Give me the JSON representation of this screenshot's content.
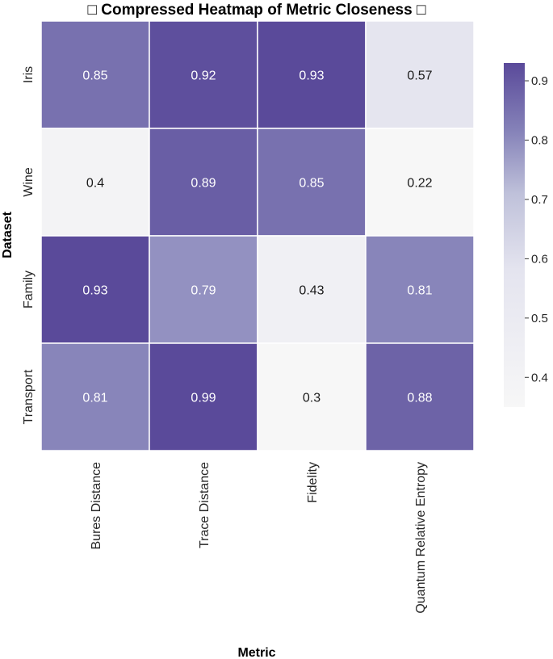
{
  "chart_data": {
    "type": "heatmap",
    "title": "□ Compressed Heatmap of Metric Closeness □",
    "xlabel": "Metric",
    "ylabel": "Dataset",
    "x_categories": [
      "Bures Distance",
      "Trace Distance",
      "Fidelity",
      "Quantum Relative Entropy"
    ],
    "y_categories": [
      "Iris",
      "Wine",
      "Family",
      "Transport"
    ],
    "values": [
      [
        0.85,
        0.92,
        0.93,
        0.57
      ],
      [
        0.4,
        0.89,
        0.85,
        0.22
      ],
      [
        0.93,
        0.79,
        0.43,
        0.81
      ],
      [
        0.81,
        0.99,
        0.3,
        0.88
      ]
    ],
    "value_labels": [
      [
        "0.85",
        "0.92",
        "0.93",
        "0.57"
      ],
      [
        "0.4",
        "0.89",
        "0.85",
        "0.22"
      ],
      [
        "0.93",
        "0.79",
        "0.43",
        "0.81"
      ],
      [
        "0.81",
        "0.99",
        "0.3",
        "0.88"
      ]
    ],
    "colorbar": {
      "range": [
        0.35,
        0.93
      ],
      "ticks": [
        0.4,
        0.5,
        0.6,
        0.7,
        0.8,
        0.9
      ],
      "tick_labels": [
        "0.4",
        "0.5",
        "0.6",
        "0.7",
        "0.8",
        "0.9"
      ],
      "color_low": "#f7f7f7",
      "color_mid": "#c3c6dd",
      "color_high": "#5a4a9a"
    }
  }
}
